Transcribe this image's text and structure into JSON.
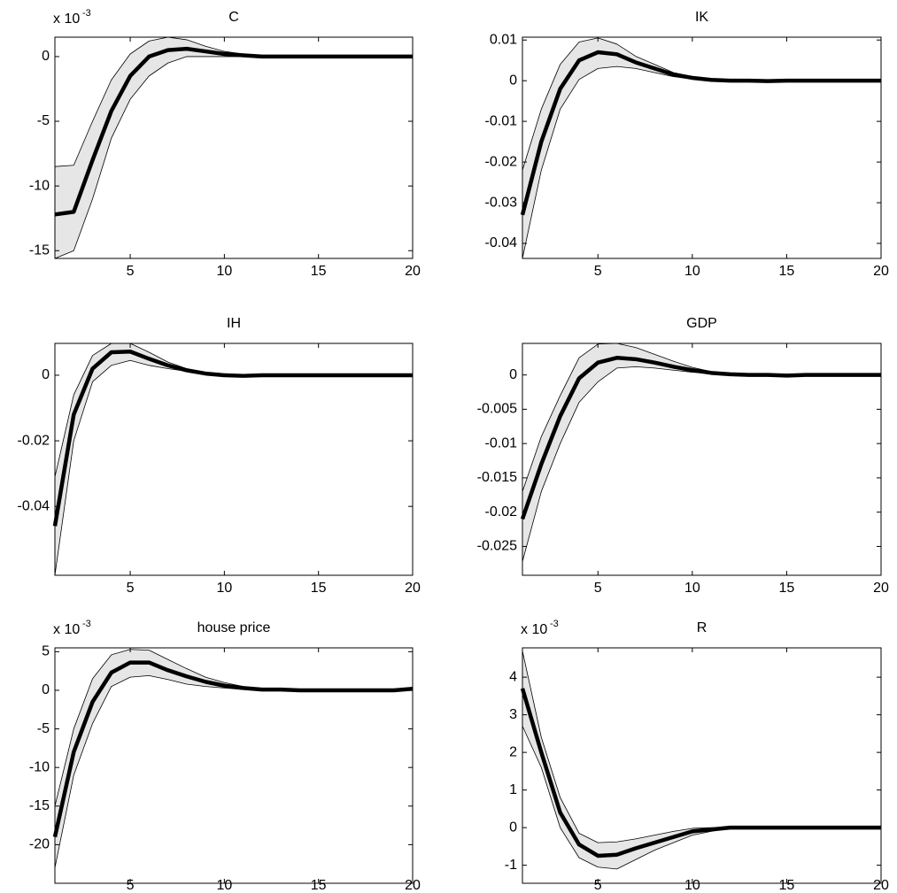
{
  "chart_data": [
    {
      "type": "line",
      "title": "C",
      "multiplier": {
        "base": "x 10",
        "exponent": "-3"
      },
      "x": [
        1,
        2,
        3,
        4,
        5,
        6,
        7,
        8,
        9,
        10,
        11,
        12,
        13,
        14,
        15,
        16,
        17,
        18,
        19,
        20
      ],
      "values": [
        -12.2,
        -12,
        -8,
        -4.2,
        -1.5,
        0,
        0.5,
        0.6,
        0.4,
        0.2,
        0.1,
        0,
        0,
        0,
        0,
        0,
        0,
        0,
        0,
        0
      ],
      "upper": [
        -8.5,
        -8.4,
        -5,
        -1.8,
        0.2,
        1.2,
        1.5,
        1.3,
        0.8,
        0.4,
        0.2,
        0.05,
        0,
        0,
        0,
        0,
        0,
        0,
        0,
        0
      ],
      "lower": [
        -15.6,
        -15,
        -11,
        -6.3,
        -3.3,
        -1.5,
        -0.5,
        0,
        0,
        0,
        0,
        -0.05,
        0,
        0,
        0,
        0,
        0,
        0,
        0,
        0
      ],
      "color": "#000000",
      "band_color": "#e6e6e6",
      "xlim": [
        1,
        20
      ],
      "xticks": [
        5,
        10,
        15,
        20
      ],
      "ylim": [
        -15.6,
        1.5
      ],
      "yticks": [
        -15,
        -10,
        -5,
        0
      ],
      "grid": false
    },
    {
      "type": "line",
      "title": "IK",
      "x": [
        1,
        2,
        3,
        4,
        5,
        6,
        7,
        8,
        9,
        10,
        11,
        12,
        13,
        14,
        15,
        16,
        17,
        18,
        19,
        20
      ],
      "values": [
        -0.033,
        -0.015,
        -0.002,
        0.005,
        0.007,
        0.0065,
        0.0045,
        0.003,
        0.0015,
        0.0007,
        0.0002,
        0,
        0,
        -0.0001,
        0,
        0,
        0,
        0,
        0,
        0
      ],
      "upper": [
        -0.022,
        -0.007,
        0.004,
        0.0095,
        0.0105,
        0.009,
        0.006,
        0.004,
        0.002,
        0.001,
        0.0003,
        0.0001,
        0,
        0,
        0,
        0,
        0,
        0,
        0,
        0
      ],
      "lower": [
        -0.0437,
        -0.022,
        -0.007,
        0.0003,
        0.003,
        0.0035,
        0.003,
        0.002,
        0.001,
        0.0004,
        0.0001,
        0,
        0,
        0,
        0,
        0,
        0,
        0,
        0,
        0
      ],
      "color": "#000000",
      "band_color": "#e6e6e6",
      "xlim": [
        1,
        20
      ],
      "xticks": [
        5,
        10,
        15,
        20
      ],
      "ylim": [
        -0.0437,
        0.0107
      ],
      "yticks": [
        -0.04,
        -0.03,
        -0.02,
        -0.01,
        0,
        0.01
      ],
      "grid": false
    },
    {
      "type": "line",
      "title": "IH",
      "x": [
        1,
        2,
        3,
        4,
        5,
        6,
        7,
        8,
        9,
        10,
        11,
        12,
        13,
        14,
        15,
        16,
        17,
        18,
        19,
        20
      ],
      "values": [
        -0.046,
        -0.012,
        0.002,
        0.007,
        0.0072,
        0.005,
        0.003,
        0.0015,
        0.0005,
        0,
        -0.0002,
        0,
        0,
        0,
        0,
        0,
        0,
        0,
        0,
        0
      ],
      "upper": [
        -0.031,
        -0.006,
        0.006,
        0.0097,
        0.0097,
        0.007,
        0.004,
        0.002,
        0.0008,
        0.0001,
        0,
        0,
        0,
        0,
        0,
        0,
        0,
        0,
        0,
        0
      ],
      "lower": [
        -0.061,
        -0.02,
        -0.002,
        0.003,
        0.0045,
        0.003,
        0.002,
        0.0012,
        0.0003,
        -0.0001,
        -0.0003,
        0,
        0,
        0,
        0,
        0,
        0,
        0,
        0,
        0
      ],
      "color": "#000000",
      "band_color": "#e6e6e6",
      "xlim": [
        1,
        20
      ],
      "xticks": [
        5,
        10,
        15,
        20
      ],
      "ylim": [
        -0.061,
        0.0097
      ],
      "yticks": [
        -0.04,
        -0.02,
        0
      ],
      "grid": false
    },
    {
      "type": "line",
      "title": "GDP",
      "x": [
        1,
        2,
        3,
        4,
        5,
        6,
        7,
        8,
        9,
        10,
        11,
        12,
        13,
        14,
        15,
        16,
        17,
        18,
        19,
        20
      ],
      "values": [
        -0.021,
        -0.013,
        -0.006,
        -0.0005,
        0.0018,
        0.0025,
        0.0023,
        0.0018,
        0.0012,
        0.0007,
        0.0003,
        0.0001,
        0,
        0,
        -0.0001,
        0,
        0,
        0,
        0,
        0
      ],
      "upper": [
        -0.017,
        -0.009,
        -0.003,
        0.0025,
        0.0045,
        0.0046,
        0.004,
        0.003,
        0.002,
        0.0011,
        0.0005,
        0.0002,
        0.0001,
        0,
        0,
        0,
        0,
        0,
        0,
        0
      ],
      "lower": [
        -0.0272,
        -0.017,
        -0.01,
        -0.004,
        -0.001,
        0.001,
        0.0012,
        0.001,
        0.0007,
        0.0004,
        0.0002,
        0,
        0,
        0,
        0,
        0,
        0,
        0,
        0,
        0
      ],
      "color": "#000000",
      "band_color": "#e6e6e6",
      "xlim": [
        1,
        20
      ],
      "xticks": [
        5,
        10,
        15,
        20
      ],
      "ylim": [
        -0.0292,
        0.0046
      ],
      "yticks": [
        -0.025,
        -0.02,
        -0.015,
        -0.01,
        -0.005,
        0
      ],
      "grid": false
    },
    {
      "type": "line",
      "title": "house price",
      "multiplier": {
        "base": "x 10",
        "exponent": "-3"
      },
      "x": [
        1,
        2,
        3,
        4,
        5,
        6,
        7,
        8,
        9,
        10,
        11,
        12,
        13,
        14,
        15,
        16,
        17,
        18,
        19,
        20
      ],
      "values": [
        -19,
        -8,
        -1.5,
        2.3,
        3.6,
        3.6,
        2.6,
        1.8,
        1.1,
        0.6,
        0.3,
        0.1,
        0.1,
        0,
        0,
        0,
        0,
        0,
        0,
        0.2
      ],
      "upper": [
        -15,
        -5,
        1.5,
        4.6,
        5.3,
        5.2,
        4,
        2.8,
        1.7,
        1,
        0.5,
        0.2,
        0.1,
        0,
        0,
        0,
        0,
        0,
        0,
        0.2
      ],
      "lower": [
        -23,
        -11,
        -4.3,
        0.5,
        1.7,
        1.9,
        1.4,
        0.8,
        0.5,
        0.3,
        0.1,
        0,
        0,
        0,
        0,
        0,
        0,
        0,
        0,
        0.2
      ],
      "color": "#000000",
      "band_color": "#e6e6e6",
      "xlim": [
        1,
        20
      ],
      "xticks": [
        5,
        10,
        15,
        20
      ],
      "ylim": [
        -25,
        5.5
      ],
      "yticks": [
        -20,
        -15,
        -10,
        -5,
        0,
        5
      ],
      "grid": false
    },
    {
      "type": "line",
      "title": "R",
      "multiplier": {
        "base": "x 10",
        "exponent": "-3"
      },
      "x": [
        1,
        2,
        3,
        4,
        5,
        6,
        7,
        8,
        9,
        10,
        11,
        12,
        13,
        14,
        15,
        16,
        17,
        18,
        19,
        20
      ],
      "values": [
        3.7,
        2,
        0.4,
        -0.45,
        -0.75,
        -0.72,
        -0.55,
        -0.4,
        -0.25,
        -0.1,
        -0.05,
        0,
        0,
        0,
        0,
        0,
        0,
        0,
        0,
        0
      ],
      "upper": [
        4.7,
        2.4,
        0.8,
        -0.15,
        -0.4,
        -0.38,
        -0.3,
        -0.2,
        -0.1,
        -0.02,
        0,
        0,
        0,
        0,
        0,
        0,
        0,
        0,
        0,
        0
      ],
      "lower": [
        2.7,
        1.6,
        0,
        -0.8,
        -1.05,
        -1.1,
        -0.85,
        -0.6,
        -0.4,
        -0.2,
        -0.1,
        -0.02,
        0,
        0,
        0,
        0,
        0,
        0,
        0,
        0
      ],
      "color": "#000000",
      "band_color": "#e6e6e6",
      "xlim": [
        1,
        20
      ],
      "xticks": [
        5,
        10,
        15,
        20
      ],
      "ylim": [
        -1.48,
        4.78
      ],
      "yticks": [
        -1,
        0,
        1,
        2,
        3,
        4
      ],
      "grid": false
    }
  ]
}
